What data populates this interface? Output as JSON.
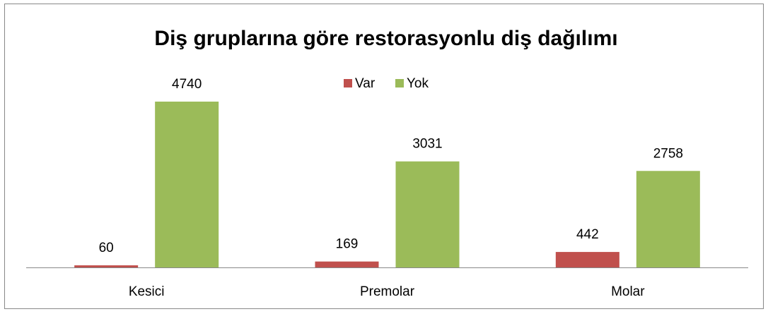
{
  "chart_data": {
    "type": "bar",
    "title": "Diş gruplarına göre restorasyonlu diş dağılımı",
    "categories": [
      "Kesici",
      "Premolar",
      "Molar"
    ],
    "series": [
      {
        "name": "Var",
        "color": "#c0504d",
        "values": [
          60,
          169,
          442
        ]
      },
      {
        "name": "Yok",
        "color": "#9bbb59",
        "values": [
          4740,
          3031,
          2758
        ]
      }
    ],
    "legend": "top"
  }
}
